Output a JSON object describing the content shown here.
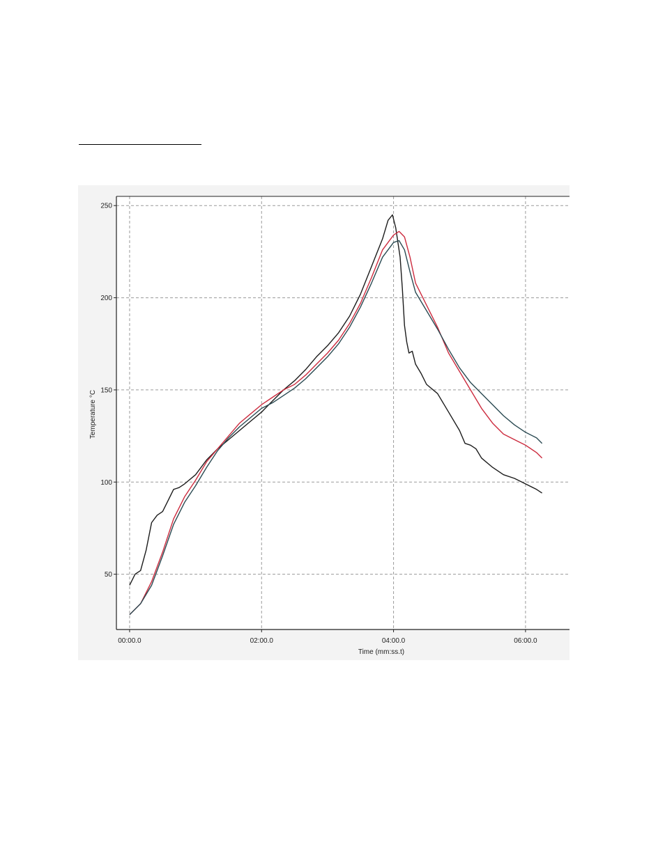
{
  "chart_data": {
    "type": "line",
    "xlabel": "Time (mm:ss.t)",
    "ylabel": "Temperature °C",
    "x_unit": "mm:ss.t",
    "xlim": [
      "-00:12.0",
      "06:40.0"
    ],
    "ylim": [
      20,
      255
    ],
    "x_ticks": [
      "00:00.0",
      "02:00.0",
      "04:00.0",
      "06:00.0"
    ],
    "y_ticks": [
      50,
      100,
      150,
      200,
      250
    ],
    "grid": true,
    "legend": "none",
    "series": [
      {
        "color": "#1b1b1b",
        "points": [
          [
            "00:00.0",
            44
          ],
          [
            "00:05.0",
            50
          ],
          [
            "00:10.0",
            52
          ],
          [
            "00:15.0",
            63
          ],
          [
            "00:20.0",
            78
          ],
          [
            "00:25.0",
            82
          ],
          [
            "00:30.0",
            84
          ],
          [
            "00:35.0",
            90
          ],
          [
            "00:40.0",
            96
          ],
          [
            "00:45.0",
            97
          ],
          [
            "00:50.0",
            99
          ],
          [
            "01:00.0",
            104
          ],
          [
            "01:10.0",
            112
          ],
          [
            "01:20.0",
            118
          ],
          [
            "01:30.0",
            123
          ],
          [
            "01:40.0",
            128
          ],
          [
            "01:50.0",
            133
          ],
          [
            "02:00.0",
            138
          ],
          [
            "02:10.0",
            144
          ],
          [
            "02:20.0",
            150
          ],
          [
            "02:30.0",
            155
          ],
          [
            "02:40.0",
            161
          ],
          [
            "02:50.0",
            168
          ],
          [
            "03:00.0",
            174
          ],
          [
            "03:10.0",
            181
          ],
          [
            "03:20.0",
            190
          ],
          [
            "03:30.0",
            202
          ],
          [
            "03:40.0",
            217
          ],
          [
            "03:50.0",
            232
          ],
          [
            "03:55.0",
            242
          ],
          [
            "03:59.0",
            245
          ],
          [
            "04:02.0",
            238
          ],
          [
            "04:06.0",
            222
          ],
          [
            "04:08.0",
            205
          ],
          [
            "04:10.0",
            185
          ],
          [
            "04:12.0",
            176
          ],
          [
            "04:14.0",
            170
          ],
          [
            "04:17.0",
            171
          ],
          [
            "04:20.0",
            164
          ],
          [
            "04:25.0",
            159
          ],
          [
            "04:30.0",
            153
          ],
          [
            "04:40.0",
            148
          ],
          [
            "04:50.0",
            138
          ],
          [
            "05:00.0",
            128
          ],
          [
            "05:05.0",
            121
          ],
          [
            "05:10.0",
            120
          ],
          [
            "05:15.0",
            118
          ],
          [
            "05:20.0",
            113
          ],
          [
            "05:30.0",
            108
          ],
          [
            "05:40.0",
            104
          ],
          [
            "05:50.0",
            102
          ],
          [
            "06:00.0",
            99
          ],
          [
            "06:10.0",
            96
          ],
          [
            "06:15.0",
            94
          ]
        ]
      },
      {
        "color": "#cc2b3e",
        "points": [
          [
            "00:00.0",
            28
          ],
          [
            "00:10.0",
            34
          ],
          [
            "00:20.0",
            46
          ],
          [
            "00:30.0",
            62
          ],
          [
            "00:40.0",
            80
          ],
          [
            "00:50.0",
            92
          ],
          [
            "01:00.0",
            101
          ],
          [
            "01:10.0",
            111
          ],
          [
            "01:20.0",
            118
          ],
          [
            "01:30.0",
            125
          ],
          [
            "01:40.0",
            132
          ],
          [
            "01:50.0",
            137
          ],
          [
            "02:00.0",
            142
          ],
          [
            "02:10.0",
            146
          ],
          [
            "02:20.0",
            150
          ],
          [
            "02:30.0",
            153
          ],
          [
            "02:40.0",
            158
          ],
          [
            "02:50.0",
            164
          ],
          [
            "03:00.0",
            170
          ],
          [
            "03:10.0",
            177
          ],
          [
            "03:20.0",
            186
          ],
          [
            "03:30.0",
            197
          ],
          [
            "03:40.0",
            211
          ],
          [
            "03:50.0",
            226
          ],
          [
            "04:00.0",
            234
          ],
          [
            "04:05.0",
            236
          ],
          [
            "04:10.0",
            233
          ],
          [
            "04:15.0",
            222
          ],
          [
            "04:20.0",
            208
          ],
          [
            "04:30.0",
            196
          ],
          [
            "04:40.0",
            184
          ],
          [
            "04:50.0",
            170
          ],
          [
            "05:00.0",
            160
          ],
          [
            "05:10.0",
            150
          ],
          [
            "05:20.0",
            140
          ],
          [
            "05:30.0",
            132
          ],
          [
            "05:40.0",
            126
          ],
          [
            "05:50.0",
            123
          ],
          [
            "06:00.0",
            120
          ],
          [
            "06:10.0",
            116
          ],
          [
            "06:15.0",
            113
          ]
        ]
      },
      {
        "color": "#2a4a52",
        "points": [
          [
            "00:00.0",
            28
          ],
          [
            "00:10.0",
            34
          ],
          [
            "00:20.0",
            44
          ],
          [
            "00:30.0",
            60
          ],
          [
            "00:40.0",
            77
          ],
          [
            "00:50.0",
            89
          ],
          [
            "01:00.0",
            98
          ],
          [
            "01:10.0",
            108
          ],
          [
            "01:20.0",
            117
          ],
          [
            "01:30.0",
            124
          ],
          [
            "01:40.0",
            130
          ],
          [
            "01:50.0",
            135
          ],
          [
            "02:00.0",
            140
          ],
          [
            "02:10.0",
            143
          ],
          [
            "02:20.0",
            147
          ],
          [
            "02:30.0",
            151
          ],
          [
            "02:40.0",
            156
          ],
          [
            "02:50.0",
            162
          ],
          [
            "03:00.0",
            168
          ],
          [
            "03:10.0",
            175
          ],
          [
            "03:20.0",
            184
          ],
          [
            "03:30.0",
            195
          ],
          [
            "03:40.0",
            208
          ],
          [
            "03:50.0",
            222
          ],
          [
            "04:00.0",
            230
          ],
          [
            "04:05.0",
            231
          ],
          [
            "04:10.0",
            226
          ],
          [
            "04:15.0",
            214
          ],
          [
            "04:20.0",
            203
          ],
          [
            "04:30.0",
            193
          ],
          [
            "04:40.0",
            183
          ],
          [
            "04:50.0",
            172
          ],
          [
            "05:00.0",
            162
          ],
          [
            "05:10.0",
            154
          ],
          [
            "05:20.0",
            148
          ],
          [
            "05:30.0",
            142
          ],
          [
            "05:40.0",
            136
          ],
          [
            "05:50.0",
            131
          ],
          [
            "06:00.0",
            127
          ],
          [
            "06:10.0",
            124
          ],
          [
            "06:15.0",
            121
          ]
        ]
      }
    ]
  }
}
